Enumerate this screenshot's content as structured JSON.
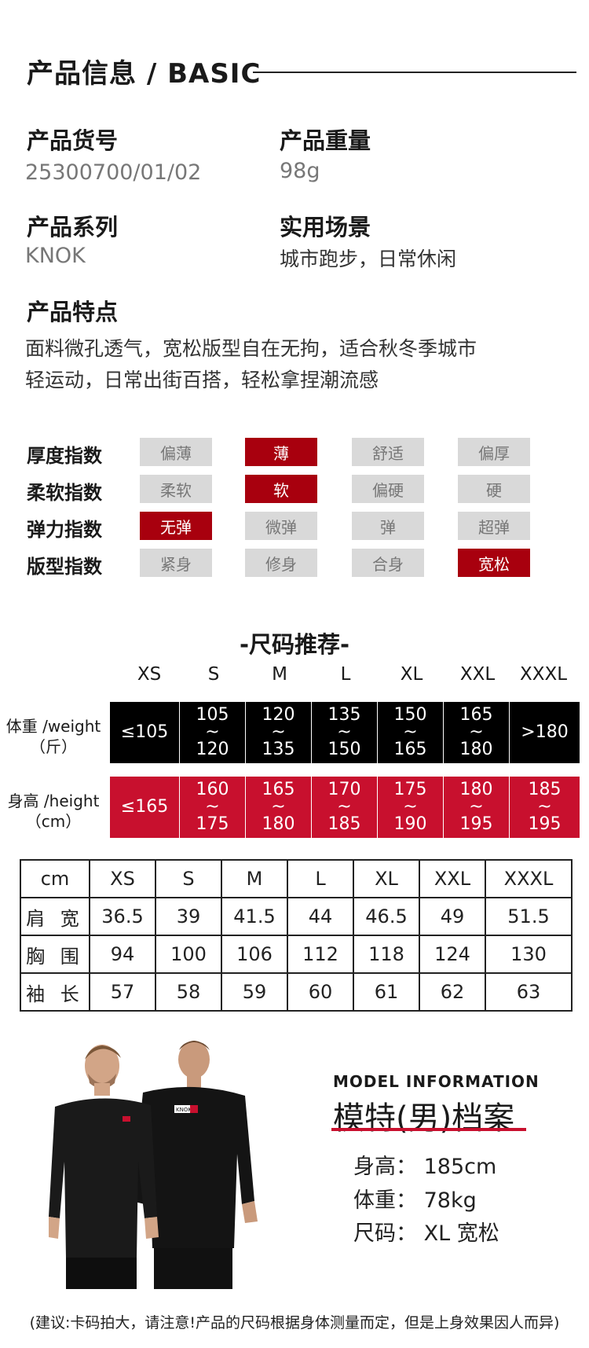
{
  "header": {
    "title": "产品信息 / BASIC"
  },
  "info": {
    "item_no": {
      "label": "产品货号",
      "value": "25300700/01/02"
    },
    "weight": {
      "label": "产品重量",
      "value": "98g"
    },
    "series": {
      "label": "产品系列",
      "value": "KNOK"
    },
    "scene": {
      "label": "实用场景",
      "value": "城市跑步，日常休闲"
    },
    "features": {
      "label": "产品特点",
      "line1": "面料微孔透气，宽松版型自在无拘，适合秋冬季城市",
      "line2": "轻运动，日常出街百搭，轻松拿捏潮流感"
    }
  },
  "indices": [
    {
      "label": "厚度指数",
      "options": [
        "偏薄",
        "薄",
        "舒适",
        "偏厚"
      ],
      "selected": 1
    },
    {
      "label": "柔软指数",
      "options": [
        "柔软",
        "软",
        "偏硬",
        "硬"
      ],
      "selected": 1
    },
    {
      "label": "弹力指数",
      "options": [
        "无弹",
        "微弹",
        "弹",
        "超弹"
      ],
      "selected": 0
    },
    {
      "label": "版型指数",
      "options": [
        "紧身",
        "修身",
        "合身",
        "宽松"
      ],
      "selected": 3
    }
  ],
  "recommend": {
    "title": "-尺码推荐-",
    "sizes": [
      "XS",
      "S",
      "M",
      "L",
      "XL",
      "XXL",
      "XXXL"
    ],
    "weight": {
      "label1": "体重 /weight",
      "label2": "（斤）",
      "cells": [
        {
          "top": "≤105",
          "tilde": "",
          "bottom": ""
        },
        {
          "top": "105",
          "tilde": "~",
          "bottom": "120"
        },
        {
          "top": "120",
          "tilde": "~",
          "bottom": "135"
        },
        {
          "top": "135",
          "tilde": "~",
          "bottom": "150"
        },
        {
          "top": "150",
          "tilde": "~",
          "bottom": "165"
        },
        {
          "top": "165",
          "tilde": "~",
          "bottom": "180"
        },
        {
          "top": ">180",
          "tilde": "",
          "bottom": ""
        }
      ]
    },
    "height": {
      "label1": "身高 /height",
      "label2": "（cm）",
      "cells": [
        {
          "top": "≤165",
          "tilde": "",
          "bottom": ""
        },
        {
          "top": "160",
          "tilde": "~",
          "bottom": "175"
        },
        {
          "top": "165",
          "tilde": "~",
          "bottom": "180"
        },
        {
          "top": "170",
          "tilde": "~",
          "bottom": "185"
        },
        {
          "top": "175",
          "tilde": "~",
          "bottom": "190"
        },
        {
          "top": "180",
          "tilde": "~",
          "bottom": "195"
        },
        {
          "top": "185",
          "tilde": "~",
          "bottom": "195"
        }
      ]
    },
    "colors": {
      "weight_band": "#000000",
      "height_band": "#c8102e"
    }
  },
  "measure_table": {
    "header": [
      "cm",
      "XS",
      "S",
      "M",
      "L",
      "XL",
      "XXL",
      "XXXL"
    ],
    "rows": [
      [
        "肩 宽",
        "36.5",
        "39",
        "41.5",
        "44",
        "46.5",
        "49",
        "51.5"
      ],
      [
        "胸 围",
        "94",
        "100",
        "106",
        "112",
        "118",
        "124",
        "130"
      ],
      [
        "袖 长",
        "57",
        "58",
        "59",
        "60",
        "61",
        "62",
        "63"
      ]
    ]
  },
  "model": {
    "en_title": "MODEL INFORMATION",
    "cn_title": "模特(男)档案",
    "height": "身高：  185cm",
    "weight": "体重：   78kg",
    "size": "尺码：  XL  宽松",
    "shirt_logo": "KNOK"
  },
  "note": "(建议:卡码拍大，请注意!产品的尺码根据身体测量而定，但是上身效果因人而异)"
}
